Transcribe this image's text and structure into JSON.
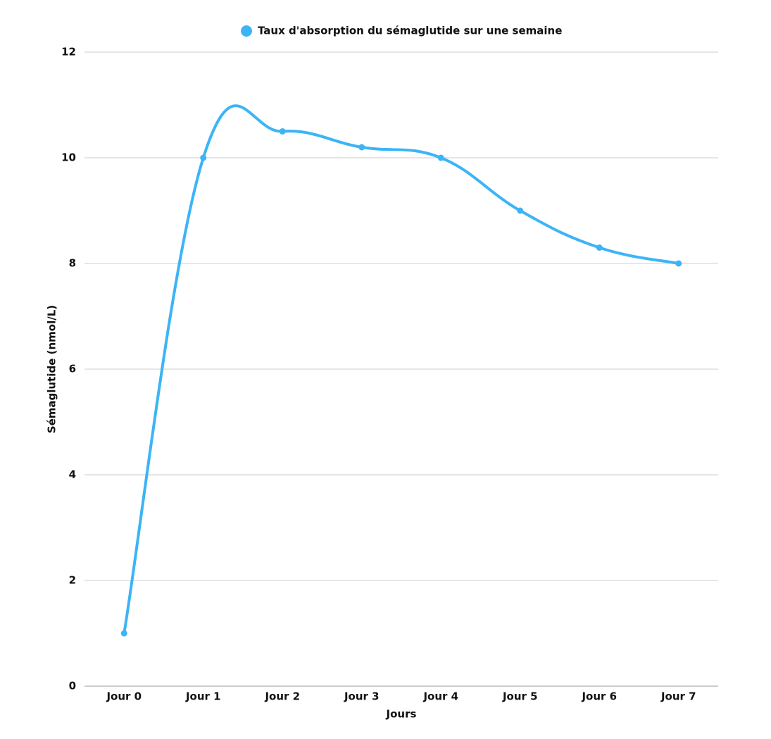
{
  "chart_data": {
    "type": "line",
    "x_label": "Jours",
    "y_label": "Sémaglutide (nmol/L)",
    "categories": [
      "Jour 0",
      "Jour 1",
      "Jour 2",
      "Jour 3",
      "Jour 4",
      "Jour 5",
      "Jour 6",
      "Jour 7"
    ],
    "series": [
      {
        "name": "Taux d'absorption du sémaglutide sur une semaine",
        "color": "#3cb4f6",
        "values": [
          1,
          10,
          10.5,
          10.2,
          10,
          9,
          8.3,
          8
        ]
      }
    ],
    "ylim": [
      0,
      12
    ],
    "yticks": [
      0,
      2,
      4,
      6,
      8,
      10,
      12
    ],
    "grid": true,
    "legend": "top"
  }
}
